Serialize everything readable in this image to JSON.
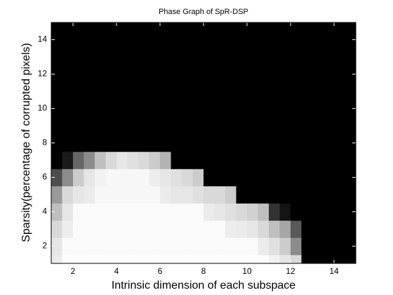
{
  "chart_data": {
    "type": "heatmap",
    "title": "Phase Graph of SpR-DSP",
    "x_label": "Intrinsic dimension of each subspace",
    "y_label": "Sparsity(percentage of corrupted pixels)",
    "colormap": "gray",
    "x": [
      1.25,
      1.75,
      2.25,
      2.75,
      3.25,
      3.75,
      4.25,
      4.75,
      5.25,
      5.75,
      6.25,
      6.75,
      7.25,
      7.75,
      8.25,
      8.75,
      9.25,
      9.75,
      10.25,
      10.75,
      11.25,
      11.75,
      12.25,
      12.75,
      13.25,
      13.75,
      14.25,
      14.75
    ],
    "y": [
      1,
      2,
      3,
      4,
      5,
      6,
      7,
      8,
      9,
      10,
      11,
      12,
      13,
      14,
      15
    ],
    "z": [
      [
        0.92,
        0.99,
        0.99,
        0.99,
        0.99,
        0.99,
        0.99,
        0.99,
        0.99,
        0.99,
        0.99,
        0.99,
        0.99,
        0.99,
        0.99,
        0.99,
        0.99,
        0.99,
        0.99,
        0.99,
        0.95,
        0.9,
        0.85,
        0,
        0,
        0,
        0,
        0
      ],
      [
        0.9,
        0.98,
        0.98,
        0.98,
        0.98,
        0.98,
        0.98,
        0.98,
        0.98,
        0.98,
        0.98,
        0.98,
        0.98,
        0.98,
        0.98,
        0.98,
        0.98,
        0.98,
        0.98,
        0.92,
        0.88,
        0.8,
        0.55,
        0,
        0,
        0,
        0,
        0
      ],
      [
        0.85,
        0.93,
        0.98,
        0.98,
        0.98,
        0.98,
        0.98,
        0.98,
        0.98,
        0.98,
        0.98,
        0.98,
        0.98,
        0.98,
        0.98,
        0.98,
        0.93,
        0.92,
        0.9,
        0.85,
        0.75,
        0.65,
        0.35,
        0,
        0,
        0,
        0,
        0
      ],
      [
        0.75,
        0.9,
        0.98,
        0.98,
        0.98,
        0.98,
        0.98,
        0.98,
        0.98,
        0.98,
        0.98,
        0.98,
        0.98,
        0.98,
        0.92,
        0.9,
        0.88,
        0.85,
        0.82,
        0.75,
        0.2,
        0.08,
        0,
        0,
        0,
        0,
        0,
        0
      ],
      [
        0.6,
        0.85,
        0.9,
        0.92,
        0.97,
        0.97,
        0.97,
        0.97,
        0.97,
        0.97,
        0.92,
        0.9,
        0.9,
        0.88,
        0.85,
        0.85,
        0.8,
        0,
        0,
        0,
        0,
        0,
        0,
        0,
        0,
        0,
        0,
        0
      ],
      [
        0.3,
        0.55,
        0.8,
        0.9,
        0.95,
        0.97,
        0.97,
        0.97,
        0.97,
        0.93,
        0.9,
        0.88,
        0.85,
        0.8,
        0,
        0,
        0,
        0,
        0,
        0,
        0,
        0,
        0,
        0,
        0,
        0,
        0,
        0
      ],
      [
        0,
        0.1,
        0.4,
        0.55,
        0.75,
        0.85,
        0.9,
        0.88,
        0.85,
        0.8,
        0.7,
        0,
        0,
        0,
        0,
        0,
        0,
        0,
        0,
        0,
        0,
        0,
        0,
        0,
        0,
        0,
        0,
        0
      ],
      [
        0,
        0,
        0,
        0,
        0,
        0,
        0,
        0,
        0,
        0,
        0,
        0,
        0,
        0,
        0,
        0,
        0,
        0,
        0,
        0,
        0,
        0,
        0,
        0,
        0,
        0,
        0,
        0
      ],
      [
        0,
        0,
        0,
        0,
        0,
        0,
        0,
        0,
        0,
        0,
        0,
        0,
        0,
        0,
        0,
        0,
        0,
        0,
        0,
        0,
        0,
        0,
        0,
        0,
        0,
        0,
        0,
        0
      ],
      [
        0,
        0,
        0,
        0,
        0,
        0,
        0,
        0,
        0,
        0,
        0,
        0,
        0,
        0,
        0,
        0,
        0,
        0,
        0,
        0,
        0,
        0,
        0,
        0,
        0,
        0,
        0,
        0
      ],
      [
        0,
        0,
        0,
        0,
        0,
        0,
        0,
        0,
        0,
        0,
        0,
        0,
        0,
        0,
        0,
        0,
        0,
        0,
        0,
        0,
        0,
        0,
        0,
        0,
        0,
        0,
        0,
        0
      ],
      [
        0,
        0,
        0,
        0,
        0,
        0,
        0,
        0,
        0,
        0,
        0,
        0,
        0,
        0,
        0,
        0,
        0,
        0,
        0,
        0,
        0,
        0,
        0,
        0,
        0,
        0,
        0,
        0
      ],
      [
        0,
        0,
        0,
        0,
        0,
        0,
        0,
        0,
        0,
        0,
        0,
        0,
        0,
        0,
        0,
        0,
        0,
        0,
        0,
        0,
        0,
        0,
        0,
        0,
        0,
        0,
        0,
        0
      ],
      [
        0,
        0,
        0,
        0,
        0,
        0,
        0,
        0,
        0,
        0,
        0,
        0,
        0,
        0,
        0,
        0,
        0,
        0,
        0,
        0,
        0,
        0,
        0,
        0,
        0,
        0,
        0,
        0
      ],
      [
        0,
        0,
        0,
        0,
        0,
        0,
        0,
        0,
        0,
        0,
        0,
        0,
        0,
        0,
        0,
        0,
        0,
        0,
        0,
        0,
        0,
        0,
        0,
        0,
        0,
        0,
        0,
        0
      ]
    ],
    "xlim": [
      1,
      15
    ],
    "xticks": [
      2,
      4,
      6,
      8,
      10,
      12,
      14
    ],
    "ylim": [
      1,
      15
    ],
    "yticks": [
      2,
      4,
      6,
      8,
      10,
      12,
      14
    ]
  }
}
